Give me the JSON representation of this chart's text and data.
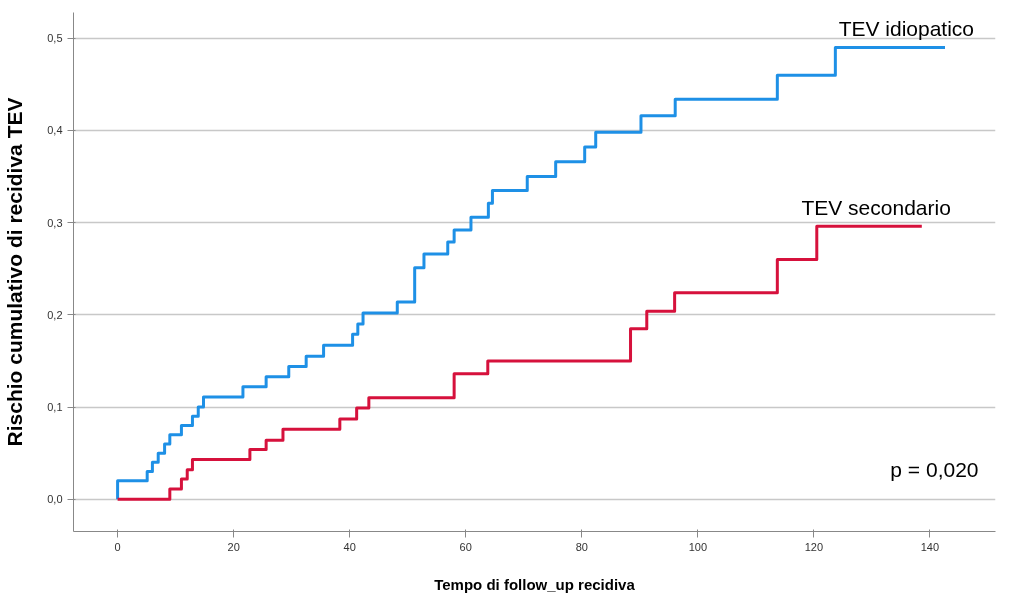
{
  "chart_data": {
    "type": "step",
    "xlabel": "Tempo di follow_up recidiva",
    "ylabel": "Rischio cumulativo di recidiva TEV",
    "xlim": [
      -7.6,
      151.3
    ],
    "ylim": [
      -0.035,
      0.528
    ],
    "xticks": [
      0,
      20,
      40,
      60,
      80,
      100,
      120,
      140
    ],
    "yticks": [
      {
        "value": 0,
        "label": "0,0"
      },
      {
        "value": 0.1,
        "label": "0,1"
      },
      {
        "value": 0.2,
        "label": "0,2"
      },
      {
        "value": 0.3,
        "label": "0,3"
      },
      {
        "value": 0.4,
        "label": "0,4"
      },
      {
        "value": 0.5,
        "label": "0,5"
      }
    ],
    "grid": "y",
    "marker": "none",
    "line_style": "solid",
    "series": [
      {
        "name": "TEV idiopatico",
        "color": "#1e90e6",
        "x": [
          0,
          0,
          5.1,
          6.0,
          7.0,
          8.1,
          9.0,
          11.0,
          12.9,
          13.9,
          14.8,
          21.6,
          25.6,
          29.5,
          32.5,
          35.5,
          40.5,
          41.4,
          42.3,
          48.2,
          51.2,
          52.8,
          56.9,
          58.0,
          60.9,
          63.9,
          64.6,
          70.6,
          75.5,
          80.5,
          82.4,
          90.2,
          96.1,
          113.7,
          123.7,
          142.6
        ],
        "values": [
          0,
          0.02,
          0.03,
          0.04,
          0.05,
          0.06,
          0.07,
          0.08,
          0.09,
          0.1,
          0.111,
          0.122,
          0.133,
          0.144,
          0.155,
          0.167,
          0.179,
          0.19,
          0.202,
          0.214,
          0.251,
          0.266,
          0.279,
          0.292,
          0.306,
          0.321,
          0.335,
          0.35,
          0.366,
          0.382,
          0.398,
          0.416,
          0.434,
          0.46,
          0.49,
          0.49
        ]
      },
      {
        "name": "TEV secondario",
        "color": "#d6113c",
        "x": [
          0,
          9.0,
          11.0,
          12.0,
          12.9,
          22.8,
          25.6,
          28.5,
          38.3,
          41.2,
          43.3,
          58.0,
          63.8,
          88.4,
          91.2,
          96.0,
          113.7,
          120.5,
          138.6
        ],
        "values": [
          0,
          0.011,
          0.022,
          0.032,
          0.043,
          0.054,
          0.064,
          0.076,
          0.087,
          0.099,
          0.11,
          0.136,
          0.15,
          0.185,
          0.204,
          0.224,
          0.26,
          0.296,
          0.296
        ]
      }
    ],
    "annotations": [
      "p = 0,020"
    ]
  }
}
